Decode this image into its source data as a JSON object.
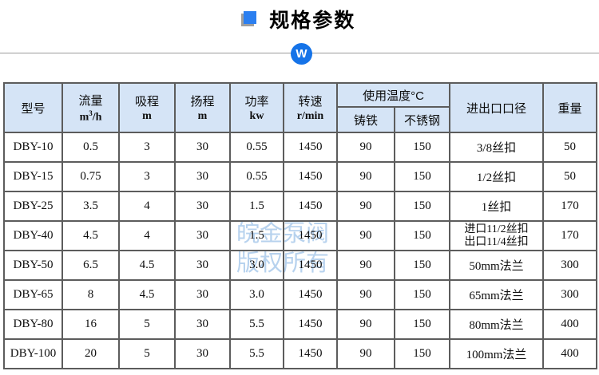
{
  "title": {
    "text": "规格参数"
  },
  "divider": {
    "badge_letter": "W"
  },
  "watermark": {
    "line1": "皖金泵阀",
    "line2": "版权所有"
  },
  "colors": {
    "accent_blue": "#2b7ff0",
    "badge_blue": "#1573e8",
    "header_bg": "#d5e4f6",
    "border": "#5c5c5c",
    "watermark": "#b7d2ee"
  },
  "table": {
    "header": {
      "model": "型号",
      "flow": {
        "label": "流量",
        "unit_base": "m",
        "unit_sup": "3",
        "unit_rest": "/h"
      },
      "suction": {
        "label": "吸程",
        "unit": "m"
      },
      "head": {
        "label": "扬程",
        "unit": "m"
      },
      "power": {
        "label": "功率",
        "unit": "kw"
      },
      "speed": {
        "label": "转速",
        "unit": "r/min"
      },
      "temperature_group": "使用温度°C",
      "cast_iron": "铸铁",
      "stainless": "不锈钢",
      "port": "进出口口径",
      "weight": "重量"
    },
    "columns_order": [
      "model",
      "flow",
      "suction",
      "head",
      "power",
      "speed",
      "cast_iron",
      "stainless",
      "port",
      "weight"
    ],
    "rows": [
      {
        "model": "DBY-10",
        "flow": "0.5",
        "suction": "3",
        "head": "30",
        "power": "0.55",
        "speed": "1450",
        "cast_iron": "90",
        "stainless": "150",
        "port": "3/8丝扣",
        "weight": "50"
      },
      {
        "model": "DBY-15",
        "flow": "0.75",
        "suction": "3",
        "head": "30",
        "power": "0.55",
        "speed": "1450",
        "cast_iron": "90",
        "stainless": "150",
        "port": "1/2丝扣",
        "weight": "50"
      },
      {
        "model": "DBY-25",
        "flow": "3.5",
        "suction": "4",
        "head": "30",
        "power": "1.5",
        "speed": "1450",
        "cast_iron": "90",
        "stainless": "150",
        "port": "1丝扣",
        "weight": "170"
      },
      {
        "model": "DBY-40",
        "flow": "4.5",
        "suction": "4",
        "head": "30",
        "power": "1.5",
        "speed": "1450",
        "cast_iron": "90",
        "stainless": "150",
        "port": [
          "进口11/2丝扣",
          "出口11/4丝扣"
        ],
        "weight": "170"
      },
      {
        "model": "DBY-50",
        "flow": "6.5",
        "suction": "4.5",
        "head": "30",
        "power": "3.0",
        "speed": "1450",
        "cast_iron": "90",
        "stainless": "150",
        "port": "50mm法兰",
        "weight": "300"
      },
      {
        "model": "DBY-65",
        "flow": "8",
        "suction": "4.5",
        "head": "30",
        "power": "3.0",
        "speed": "1450",
        "cast_iron": "90",
        "stainless": "150",
        "port": "65mm法兰",
        "weight": "300"
      },
      {
        "model": "DBY-80",
        "flow": "16",
        "suction": "5",
        "head": "30",
        "power": "5.5",
        "speed": "1450",
        "cast_iron": "90",
        "stainless": "150",
        "port": "80mm法兰",
        "weight": "400"
      },
      {
        "model": "DBY-100",
        "flow": "20",
        "suction": "5",
        "head": "30",
        "power": "5.5",
        "speed": "1450",
        "cast_iron": "90",
        "stainless": "150",
        "port": "100mm法兰",
        "weight": "400"
      }
    ]
  }
}
